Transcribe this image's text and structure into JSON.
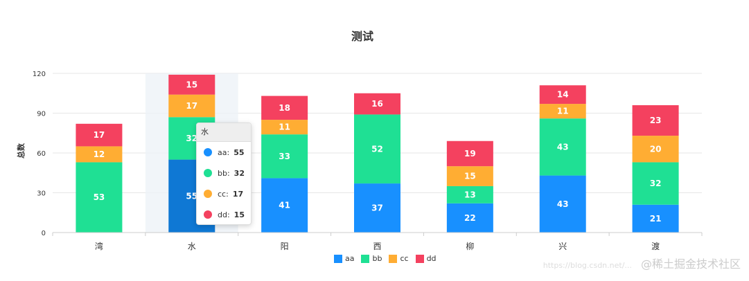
{
  "chart_data": {
    "type": "bar",
    "stacked": true,
    "title": "测试",
    "ylabel": "总数",
    "ylim": [
      0,
      120
    ],
    "yticks": [
      0,
      30,
      60,
      90,
      120
    ],
    "grid": true,
    "legend_position": "bottom",
    "categories": [
      "湾",
      "水",
      "阳",
      "西",
      "柳",
      "兴",
      "渡"
    ],
    "series": [
      {
        "name": "aa",
        "color": "#1890ff",
        "values": [
          null,
          55,
          41,
          37,
          22,
          43,
          21
        ]
      },
      {
        "name": "bb",
        "color": "#1fe094",
        "values": [
          53,
          32,
          33,
          52,
          13,
          43,
          32
        ]
      },
      {
        "name": "cc",
        "color": "#ffad33",
        "values": [
          12,
          17,
          11,
          null,
          15,
          11,
          20
        ]
      },
      {
        "name": "dd",
        "color": "#f4415f",
        "values": [
          17,
          15,
          18,
          16,
          19,
          14,
          23
        ]
      }
    ],
    "highlighted_category_index": 1
  },
  "tooltip": {
    "title": "水",
    "items": [
      {
        "name": "aa:",
        "value": "55",
        "color": "#1890ff"
      },
      {
        "name": "bb:",
        "value": "32",
        "color": "#1fe094"
      },
      {
        "name": "cc:",
        "value": "17",
        "color": "#ffad33"
      },
      {
        "name": "dd:",
        "value": "15",
        "color": "#f4415f"
      }
    ]
  },
  "watermark": {
    "main": "@稀土掘金技术社区",
    "faint": "https://blog.csdn.net/..."
  }
}
